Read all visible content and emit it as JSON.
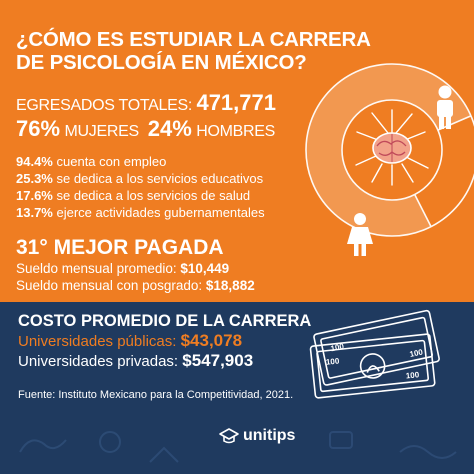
{
  "title": {
    "line1": "¿CÓMO ES ESTUDIAR LA CARRERA",
    "line2": "DE PSICOLOGÍA EN MÉXICO?"
  },
  "graduates": {
    "label": "EGRESADOS TOTALES:",
    "total": "471,771",
    "women_pct": "76%",
    "women_label": "MUJERES",
    "men_pct": "24%",
    "men_label": "HOMBRES",
    "women_share": 0.76
  },
  "employment": [
    {
      "pct": "94.4%",
      "text": "cuenta con empleo"
    },
    {
      "pct": "25.3%",
      "text": "se dedica a los servicios educativos"
    },
    {
      "pct": "17.6%",
      "text": "se dedica a los servicios de salud"
    },
    {
      "pct": "13.7%",
      "text": "ejerce actividades gubernamentales"
    }
  ],
  "ranking": {
    "title": "31° MEJOR PAGADA",
    "salary_label": "Sueldo mensual promedio:",
    "salary_value": "$10,449",
    "postgrad_label": "Sueldo mensual con posgrado:",
    "postgrad_value": "$18,882"
  },
  "cost": {
    "title": "COSTO PROMEDIO DE LA CARRERA",
    "public_label": "Universidades públicas:",
    "public_value": "$43,078",
    "private_label": "Universidades privadas:",
    "private_value": "$547,903"
  },
  "money_illustration": {
    "note_value": "100"
  },
  "source": "Fuente: Instituto Mexicano para la Competitividad, 2021.",
  "brand": {
    "name": "unitips",
    "icon": "graduation-cap-icon"
  },
  "colors": {
    "orange": "#ef7d22",
    "navy": "#1f3a5f"
  }
}
